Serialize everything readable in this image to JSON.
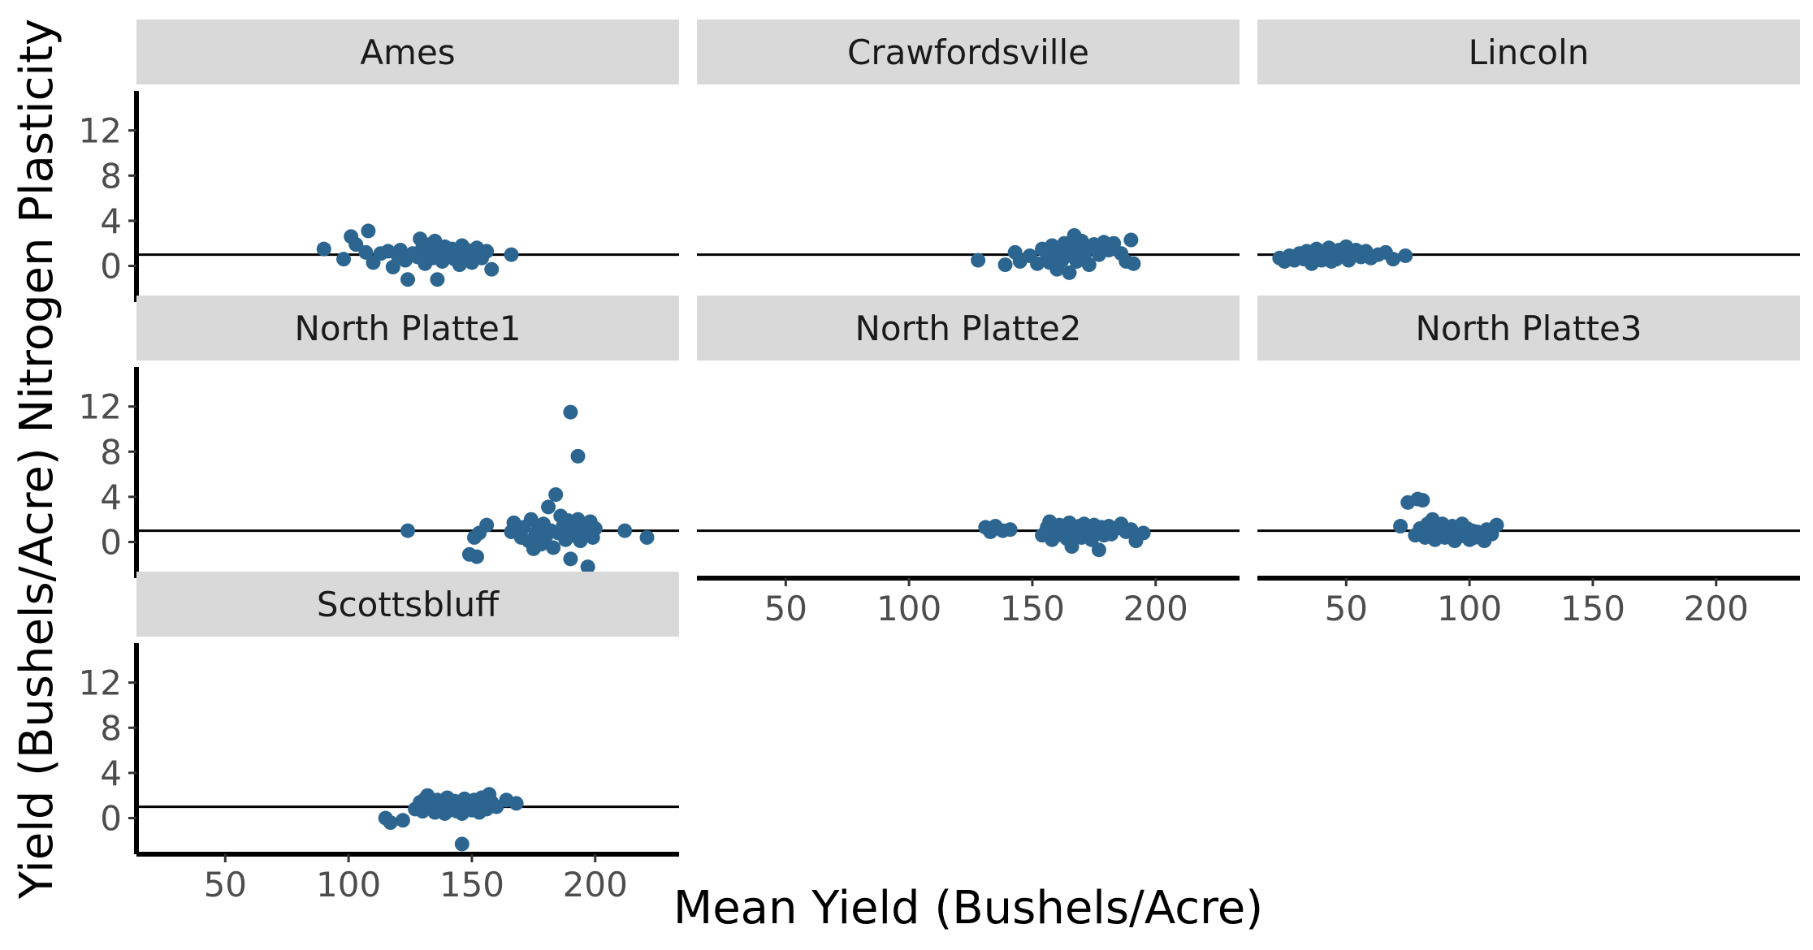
{
  "chart_data": {
    "type": "scatter",
    "facet_wrap": true,
    "xlabel": "Mean Yield (Bushels/Acre)",
    "ylabel": "Yield (Bushels/Acre) Nitrogen Plasticity",
    "xlim": [
      14,
      234
    ],
    "ylim": [
      -3.2,
      15.5
    ],
    "x_ticks": [
      50,
      100,
      150,
      200
    ],
    "y_ticks": [
      0,
      4,
      8,
      12
    ],
    "reference_line_y": 1,
    "point_color": "#2c6690",
    "strip_color": "#d9d9d9",
    "panels": [
      {
        "name": "Ames",
        "points": [
          [
            90,
            1.5
          ],
          [
            98,
            0.6
          ],
          [
            101,
            2.6
          ],
          [
            103,
            1.9
          ],
          [
            107,
            1.2
          ],
          [
            108,
            3.1
          ],
          [
            110,
            0.3
          ],
          [
            113,
            1.1
          ],
          [
            116,
            1.3
          ],
          [
            118,
            -0.1
          ],
          [
            120,
            0.9
          ],
          [
            121,
            1.4
          ],
          [
            123,
            0.5
          ],
          [
            124,
            -1.2
          ],
          [
            126,
            1.1
          ],
          [
            128,
            0.8
          ],
          [
            129,
            2.4
          ],
          [
            130,
            1.6
          ],
          [
            131,
            0.2
          ],
          [
            132,
            1.0
          ],
          [
            133,
            1.9
          ],
          [
            134,
            0.7
          ],
          [
            135,
            2.2
          ],
          [
            136,
            -1.2
          ],
          [
            137,
            1.3
          ],
          [
            138,
            0.4
          ],
          [
            139,
            1.7
          ],
          [
            140,
            1.1
          ],
          [
            141,
            0.9
          ],
          [
            142,
            1.5
          ],
          [
            143,
            0.6
          ],
          [
            144,
            1.2
          ],
          [
            145,
            0.1
          ],
          [
            146,
            1.8
          ],
          [
            147,
            0.8
          ],
          [
            148,
            1.4
          ],
          [
            149,
            1.0
          ],
          [
            150,
            0.3
          ],
          [
            152,
            1.6
          ],
          [
            154,
            0.7
          ],
          [
            156,
            1.3
          ],
          [
            158,
            -0.3
          ],
          [
            166,
            1.0
          ]
        ]
      },
      {
        "name": "Crawfordsville",
        "points": [
          [
            128,
            0.5
          ],
          [
            139,
            0.1
          ],
          [
            143,
            1.2
          ],
          [
            145,
            0.4
          ],
          [
            149,
            0.9
          ],
          [
            152,
            0.2
          ],
          [
            154,
            1.5
          ],
          [
            156,
            1.0
          ],
          [
            157,
            0.3
          ],
          [
            158,
            1.8
          ],
          [
            159,
            0.7
          ],
          [
            160,
            -0.3
          ],
          [
            161,
            1.3
          ],
          [
            162,
            0.5
          ],
          [
            163,
            2.0
          ],
          [
            164,
            0.9
          ],
          [
            165,
            -0.6
          ],
          [
            166,
            1.6
          ],
          [
            167,
            2.7
          ],
          [
            168,
            0.4
          ],
          [
            169,
            1.2
          ],
          [
            170,
            2.2
          ],
          [
            171,
            0.8
          ],
          [
            172,
            1.5
          ],
          [
            173,
            0.1
          ],
          [
            175,
            1.9
          ],
          [
            177,
            1.0
          ],
          [
            179,
            2.1
          ],
          [
            181,
            1.4
          ],
          [
            183,
            2.0
          ],
          [
            186,
            1.1
          ],
          [
            188,
            0.4
          ],
          [
            190,
            2.3
          ],
          [
            191,
            0.2
          ]
        ]
      },
      {
        "name": "Lincoln",
        "points": [
          [
            23,
            0.7
          ],
          [
            25,
            0.4
          ],
          [
            27,
            0.9
          ],
          [
            29,
            0.5
          ],
          [
            31,
            1.1
          ],
          [
            33,
            0.6
          ],
          [
            34,
            1.3
          ],
          [
            36,
            0.2
          ],
          [
            37,
            0.9
          ],
          [
            38,
            1.5
          ],
          [
            40,
            0.5
          ],
          [
            41,
            1.2
          ],
          [
            42,
            0.8
          ],
          [
            43,
            1.6
          ],
          [
            44,
            0.4
          ],
          [
            45,
            1.0
          ],
          [
            46,
            0.6
          ],
          [
            47,
            1.4
          ],
          [
            48,
            0.9
          ],
          [
            50,
            1.7
          ],
          [
            51,
            0.5
          ],
          [
            52,
            1.1
          ],
          [
            54,
            1.4
          ],
          [
            56,
            0.8
          ],
          [
            58,
            1.3
          ],
          [
            60,
            0.7
          ],
          [
            63,
            1.0
          ],
          [
            66,
            1.2
          ],
          [
            69,
            0.6
          ],
          [
            74,
            0.9
          ]
        ]
      },
      {
        "name": "North Platte1",
        "points": [
          [
            124,
            1.0
          ],
          [
            149,
            -1.1
          ],
          [
            151,
            0.4
          ],
          [
            152,
            -1.3
          ],
          [
            153,
            0.8
          ],
          [
            156,
            1.5
          ],
          [
            166,
            0.9
          ],
          [
            167,
            1.7
          ],
          [
            170,
            0.4
          ],
          [
            171,
            1.3
          ],
          [
            173,
            0.1
          ],
          [
            174,
            2.0
          ],
          [
            175,
            -0.6
          ],
          [
            176,
            0.8
          ],
          [
            177,
            1.2
          ],
          [
            178,
            -0.2
          ],
          [
            179,
            1.6
          ],
          [
            180,
            0.5
          ],
          [
            181,
            3.1
          ],
          [
            182,
            1.0
          ],
          [
            183,
            -0.5
          ],
          [
            184,
            4.2
          ],
          [
            185,
            0.8
          ],
          [
            186,
            2.3
          ],
          [
            187,
            1.4
          ],
          [
            188,
            0.2
          ],
          [
            189,
            1.9
          ],
          [
            190,
            -1.5
          ],
          [
            190,
            11.5
          ],
          [
            191,
            0.6
          ],
          [
            192,
            1.3
          ],
          [
            193,
            2.0
          ],
          [
            193,
            7.6
          ],
          [
            194,
            0.1
          ],
          [
            195,
            1.5
          ],
          [
            196,
            0.9
          ],
          [
            197,
            -2.2
          ],
          [
            198,
            1.8
          ],
          [
            199,
            0.4
          ],
          [
            200,
            1.2
          ],
          [
            212,
            1.0
          ],
          [
            221,
            0.4
          ]
        ]
      },
      {
        "name": "North Platte2",
        "points": [
          [
            131,
            1.3
          ],
          [
            133,
            0.9
          ],
          [
            135,
            1.4
          ],
          [
            138,
            1.0
          ],
          [
            141,
            1.1
          ],
          [
            154,
            0.6
          ],
          [
            156,
            1.3
          ],
          [
            157,
            1.8
          ],
          [
            158,
            0.2
          ],
          [
            159,
            1.0
          ],
          [
            160,
            0.6
          ],
          [
            161,
            1.5
          ],
          [
            162,
            0.8
          ],
          [
            163,
            1.2
          ],
          [
            164,
            0.3
          ],
          [
            165,
            1.7
          ],
          [
            166,
            -0.4
          ],
          [
            167,
            1.1
          ],
          [
            168,
            0.7
          ],
          [
            169,
            1.4
          ],
          [
            170,
            0.4
          ],
          [
            171,
            1.6
          ],
          [
            172,
            0.9
          ],
          [
            173,
            1.2
          ],
          [
            174,
            0.2
          ],
          [
            175,
            1.5
          ],
          [
            176,
            0.8
          ],
          [
            177,
            -0.7
          ],
          [
            178,
            1.3
          ],
          [
            179,
            0.6
          ],
          [
            180,
            1.0
          ],
          [
            181,
            1.4
          ],
          [
            182,
            0.7
          ],
          [
            184,
            1.2
          ],
          [
            186,
            1.6
          ],
          [
            188,
            0.9
          ],
          [
            190,
            1.1
          ],
          [
            192,
            0.1
          ],
          [
            195,
            0.8
          ]
        ]
      },
      {
        "name": "North Platte3",
        "points": [
          [
            72,
            1.4
          ],
          [
            75,
            3.5
          ],
          [
            78,
            0.6
          ],
          [
            79,
            3.8
          ],
          [
            80,
            1.2
          ],
          [
            81,
            3.7
          ],
          [
            82,
            0.4
          ],
          [
            83,
            1.6
          ],
          [
            84,
            0.9
          ],
          [
            85,
            2.0
          ],
          [
            86,
            0.2
          ],
          [
            87,
            1.3
          ],
          [
            88,
            0.7
          ],
          [
            89,
            1.6
          ],
          [
            90,
            0.4
          ],
          [
            91,
            1.1
          ],
          [
            92,
            0.6
          ],
          [
            93,
            1.4
          ],
          [
            94,
            0.1
          ],
          [
            95,
            1.0
          ],
          [
            96,
            0.5
          ],
          [
            97,
            1.6
          ],
          [
            98,
            0.8
          ],
          [
            99,
            1.2
          ],
          [
            100,
            0.2
          ],
          [
            101,
            1.0
          ],
          [
            102,
            0.4
          ],
          [
            103,
            0.9
          ],
          [
            105,
            0.6
          ],
          [
            106,
            0.1
          ],
          [
            107,
            1.1
          ],
          [
            109,
            0.7
          ],
          [
            111,
            1.5
          ]
        ]
      },
      {
        "name": "Scottsbluff",
        "points": [
          [
            115,
            0.0
          ],
          [
            117,
            -0.4
          ],
          [
            122,
            -0.2
          ],
          [
            127,
            0.8
          ],
          [
            129,
            1.4
          ],
          [
            130,
            0.6
          ],
          [
            131,
            1.7
          ],
          [
            132,
            2.0
          ],
          [
            133,
            0.9
          ],
          [
            134,
            1.2
          ],
          [
            135,
            0.5
          ],
          [
            136,
            1.6
          ],
          [
            137,
            0.9
          ],
          [
            138,
            1.3
          ],
          [
            139,
            0.4
          ],
          [
            140,
            1.8
          ],
          [
            141,
            0.7
          ],
          [
            142,
            1.1
          ],
          [
            143,
            1.5
          ],
          [
            144,
            0.6
          ],
          [
            145,
            1.2
          ],
          [
            146,
            0.4
          ],
          [
            146,
            -2.3
          ],
          [
            147,
            1.7
          ],
          [
            148,
            0.9
          ],
          [
            149,
            1.3
          ],
          [
            150,
            0.7
          ],
          [
            151,
            1.6
          ],
          [
            152,
            1.1
          ],
          [
            153,
            0.5
          ],
          [
            154,
            1.8
          ],
          [
            155,
            1.2
          ],
          [
            156,
            0.8
          ],
          [
            157,
            2.1
          ],
          [
            158,
            1.4
          ],
          [
            160,
            1.0
          ],
          [
            164,
            1.6
          ],
          [
            168,
            1.3
          ]
        ]
      }
    ]
  }
}
